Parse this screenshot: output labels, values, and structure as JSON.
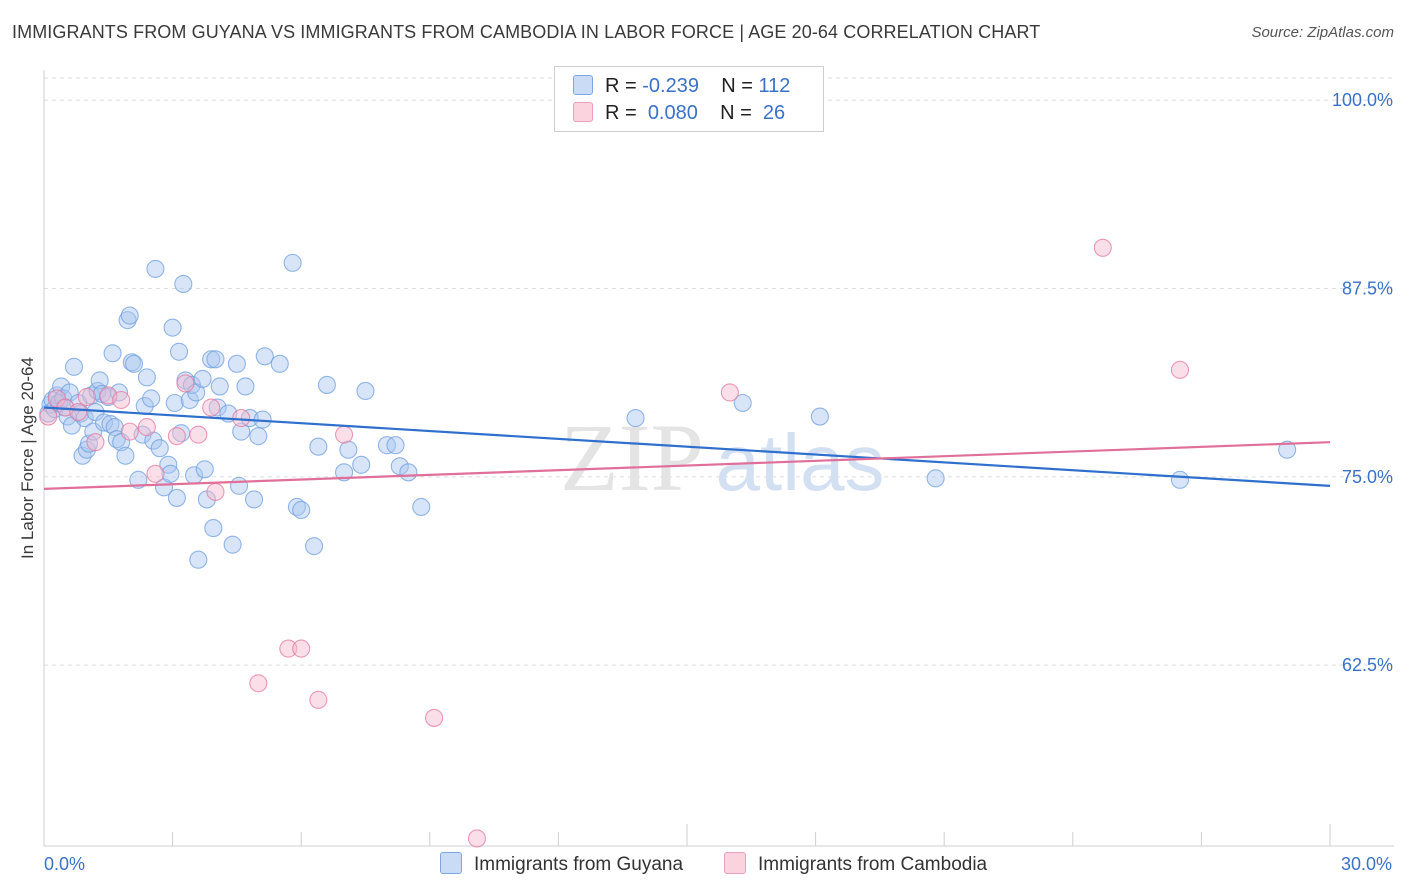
{
  "title": "IMMIGRANTS FROM GUYANA VS IMMIGRANTS FROM CAMBODIA IN LABOR FORCE | AGE 20-64 CORRELATION CHART",
  "source": "Source: ZipAtlas.com",
  "watermark": {
    "zip": "ZIP",
    "atlas": "atlas"
  },
  "legend": {
    "rows": [
      {
        "r_label": "R =",
        "r_value": "-0.239",
        "n_label": "N =",
        "n_value": "112",
        "color": "#a9c6f0"
      },
      {
        "r_label": "R =",
        "r_value": "0.080",
        "n_label": "N =",
        "n_value": "26",
        "color": "#f6b8cb"
      }
    ]
  },
  "chart_data": {
    "type": "scatter",
    "title": "IMMIGRANTS FROM GUYANA VS IMMIGRANTS FROM CAMBODIA IN LABOR FORCE | AGE 20-64 CORRELATION CHART",
    "xlabel": "",
    "ylabel": "In Labor Force | Age 20-64",
    "xlim": [
      0,
      30
    ],
    "ylim": [
      50.5,
      102
    ],
    "x_tick_labels": [
      "0.0%",
      "30.0%"
    ],
    "y_ticks": [
      62.5,
      75.0,
      87.5,
      100.0
    ],
    "y_tick_labels": [
      "62.5%",
      "75.0%",
      "87.5%",
      "100.0%"
    ],
    "grid": true,
    "legend_position": "top-center",
    "series": [
      {
        "name": "Immigrants from Guyana",
        "color": "#6f9fe0",
        "fill": "#a9c6f0",
        "trend": {
          "x": [
            0,
            30
          ],
          "y": [
            79.6,
            74.4
          ]
        },
        "points": [
          [
            0.1,
            79.2
          ],
          [
            0.15,
            79.8
          ],
          [
            0.2,
            80.1
          ],
          [
            0.25,
            79.5
          ],
          [
            0.3,
            80.4
          ],
          [
            0.35,
            79.9
          ],
          [
            0.4,
            81.0
          ],
          [
            0.45,
            80.2
          ],
          [
            0.5,
            79.6
          ],
          [
            0.55,
            79.0
          ],
          [
            0.6,
            80.6
          ],
          [
            0.65,
            78.4
          ],
          [
            0.7,
            82.3
          ],
          [
            0.8,
            79.9
          ],
          [
            0.85,
            79.2
          ],
          [
            0.9,
            76.4
          ],
          [
            0.95,
            78.9
          ],
          [
            1.0,
            76.8
          ],
          [
            1.05,
            77.2
          ],
          [
            1.1,
            80.4
          ],
          [
            1.15,
            78.0
          ],
          [
            1.2,
            79.3
          ],
          [
            1.25,
            80.7
          ],
          [
            1.3,
            81.4
          ],
          [
            1.35,
            80.5
          ],
          [
            1.4,
            78.6
          ],
          [
            1.5,
            80.3
          ],
          [
            1.55,
            78.5
          ],
          [
            1.6,
            83.2
          ],
          [
            1.65,
            78.3
          ],
          [
            1.7,
            77.5
          ],
          [
            1.75,
            80.6
          ],
          [
            1.8,
            77.3
          ],
          [
            1.9,
            76.4
          ],
          [
            1.95,
            85.4
          ],
          [
            2.0,
            85.7
          ],
          [
            2.05,
            82.6
          ],
          [
            2.1,
            82.5
          ],
          [
            2.2,
            74.8
          ],
          [
            2.3,
            77.8
          ],
          [
            2.35,
            79.7
          ],
          [
            2.4,
            81.6
          ],
          [
            2.5,
            80.2
          ],
          [
            2.55,
            77.4
          ],
          [
            2.6,
            88.8
          ],
          [
            2.7,
            76.9
          ],
          [
            2.8,
            74.3
          ],
          [
            2.9,
            75.8
          ],
          [
            2.95,
            75.2
          ],
          [
            3.0,
            84.9
          ],
          [
            3.05,
            79.9
          ],
          [
            3.1,
            73.6
          ],
          [
            3.15,
            83.3
          ],
          [
            3.2,
            77.9
          ],
          [
            3.25,
            87.8
          ],
          [
            3.3,
            81.4
          ],
          [
            3.4,
            80.1
          ],
          [
            3.45,
            81.1
          ],
          [
            3.5,
            75.1
          ],
          [
            3.55,
            80.6
          ],
          [
            3.6,
            69.5
          ],
          [
            3.7,
            81.5
          ],
          [
            3.75,
            75.5
          ],
          [
            3.8,
            73.5
          ],
          [
            3.9,
            82.8
          ],
          [
            3.95,
            71.6
          ],
          [
            4.0,
            82.8
          ],
          [
            4.05,
            79.6
          ],
          [
            4.1,
            81.0
          ],
          [
            4.3,
            79.2
          ],
          [
            4.4,
            70.5
          ],
          [
            4.5,
            82.5
          ],
          [
            4.55,
            74.4
          ],
          [
            4.6,
            78.0
          ],
          [
            4.7,
            81.0
          ],
          [
            4.8,
            78.9
          ],
          [
            4.9,
            73.5
          ],
          [
            5.0,
            77.7
          ],
          [
            5.1,
            78.8
          ],
          [
            5.15,
            83.0
          ],
          [
            5.5,
            82.5
          ],
          [
            5.8,
            89.2
          ],
          [
            5.9,
            73.0
          ],
          [
            6.0,
            72.8
          ],
          [
            6.3,
            70.4
          ],
          [
            6.4,
            77.0
          ],
          [
            6.6,
            81.1
          ],
          [
            7.0,
            75.3
          ],
          [
            7.1,
            76.8
          ],
          [
            7.4,
            75.8
          ],
          [
            7.5,
            80.7
          ],
          [
            8.0,
            77.1
          ],
          [
            8.2,
            77.1
          ],
          [
            8.3,
            75.7
          ],
          [
            8.5,
            75.3
          ],
          [
            8.8,
            73.0
          ],
          [
            13.8,
            78.9
          ],
          [
            16.3,
            79.9
          ],
          [
            18.1,
            79.0
          ],
          [
            20.8,
            74.9
          ],
          [
            26.5,
            74.8
          ],
          [
            29.0,
            76.8
          ]
        ]
      },
      {
        "name": "Immigrants from Cambodia",
        "color": "#e37aa0",
        "fill": "#f6b8cb",
        "trend": {
          "x": [
            0,
            30
          ],
          "y": [
            74.2,
            77.3
          ]
        },
        "points": [
          [
            0.1,
            79.0
          ],
          [
            0.3,
            80.2
          ],
          [
            0.5,
            79.6
          ],
          [
            0.8,
            79.3
          ],
          [
            1.0,
            80.3
          ],
          [
            1.2,
            77.3
          ],
          [
            1.5,
            80.4
          ],
          [
            1.8,
            80.1
          ],
          [
            2.0,
            78.0
          ],
          [
            2.4,
            78.3
          ],
          [
            2.6,
            75.2
          ],
          [
            3.1,
            77.7
          ],
          [
            3.3,
            81.2
          ],
          [
            3.6,
            77.8
          ],
          [
            3.9,
            79.6
          ],
          [
            4.0,
            74.0
          ],
          [
            4.6,
            78.9
          ],
          [
            5.0,
            61.3
          ],
          [
            5.7,
            63.6
          ],
          [
            6.0,
            63.6
          ],
          [
            6.4,
            60.2
          ],
          [
            7.0,
            77.8
          ],
          [
            9.1,
            59.0
          ],
          [
            10.1,
            51.0
          ],
          [
            16.0,
            80.6
          ],
          [
            24.7,
            90.2
          ],
          [
            26.5,
            82.1
          ]
        ]
      }
    ]
  },
  "bottom_legend": [
    {
      "label": "Immigrants from Guyana",
      "color": "#a9c6f0"
    },
    {
      "label": "Immigrants from Cambodia",
      "color": "#f6b8cb"
    }
  ]
}
